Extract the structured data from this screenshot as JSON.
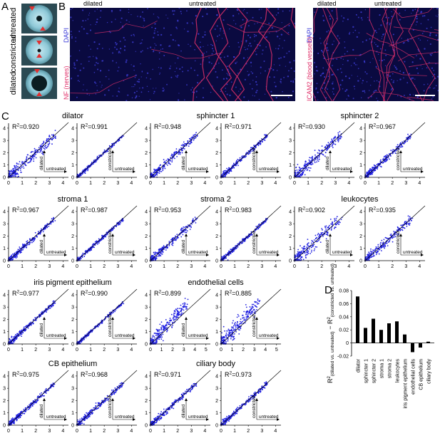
{
  "panel_labels": {
    "a": "A",
    "b": "B",
    "c": "C",
    "d": "D"
  },
  "panel_a": {
    "rows": [
      "untreated",
      "constricted",
      "dilated"
    ],
    "colors": {
      "eye_bg": "#2f4f58",
      "iris": "#8fc9d8",
      "pupil": "#0b1d22",
      "arrow": "#e03030"
    }
  },
  "panel_b": {
    "left": {
      "labels": [
        "dilated",
        "untreated"
      ],
      "stain_red": "NF (nerves)",
      "stain_blue": "DAPI"
    },
    "right": {
      "labels": [
        "dilated",
        "untreated"
      ],
      "stain_red": "ICAM2 (blood vessels)",
      "stain_blue": "DAPI"
    },
    "colors": {
      "tissue": "#1a1a8c",
      "nuclei": "#3d3dd6",
      "fiber": "#e0306a"
    }
  },
  "panel_c": {
    "x_label": "untreated",
    "y_dilated": "dilated",
    "y_constricted": "constricted",
    "r2_prefix": "R",
    "r2_sup": "2",
    "r2_eq": "=",
    "point_color": "#1f1fe0",
    "rows": [
      {
        "groups": [
          {
            "title": "dilator",
            "r2": [
              "0.920",
              "0.991"
            ]
          },
          {
            "title": "sphincter 1",
            "r2": [
              "0.948",
              "0.971"
            ]
          },
          {
            "title": "sphincter 2",
            "r2": [
              "0.930",
              "0.967"
            ]
          }
        ]
      },
      {
        "groups": [
          {
            "title": "stroma 1",
            "r2": [
              "0.967",
              "0.987"
            ]
          },
          {
            "title": "stroma 2",
            "r2": [
              "0.953",
              "0.983"
            ]
          },
          {
            "title": "leukocytes",
            "r2": [
              "0.902",
              "0.935"
            ]
          }
        ]
      },
      {
        "groups": [
          {
            "title": "iris pigment epithelium",
            "r2": [
              "0.977",
              "0.990"
            ]
          },
          {
            "title": "endothelial cells",
            "r2": [
              "0.899",
              "0.885"
            ]
          }
        ]
      },
      {
        "groups": [
          {
            "title": "CB epithelium",
            "r2": [
              "0.975",
              "0.968"
            ]
          },
          {
            "title": "ciliary body",
            "r2": [
              "0.971",
              "0.973"
            ]
          }
        ]
      }
    ],
    "tick_labels": {
      "y": [
        "0",
        "1",
        "2",
        "3",
        "4"
      ],
      "x": [
        "0",
        "1",
        "2",
        "3",
        "4"
      ],
      "x5": [
        "0",
        "1",
        "2",
        "3",
        "4",
        "5"
      ]
    }
  },
  "chart_data": {
    "type": "bar",
    "categories": [
      "dilator",
      "sphincter 1",
      "sphincter 2",
      "stroma 1",
      "stroma 2",
      "leukocytes",
      "iris pigment epithelium",
      "endothelial cells",
      "CB epithelium",
      "ciliary body"
    ],
    "values": [
      0.071,
      0.023,
      0.037,
      0.02,
      0.03,
      0.033,
      0.013,
      -0.014,
      -0.007,
      0.002
    ],
    "ylabel_main": "R",
    "ylabel_sup_a": "2",
    "ylabel_sub_a": "(dilated vs. untreated)",
    "ylabel_minus": " − R",
    "ylabel_sup_b": "2",
    "ylabel_sub_b": "(constricted vs. untreated)",
    "y_ticks": [
      "0.08",
      "0.06",
      "0.04",
      "0.02",
      "0",
      "-0.02"
    ],
    "ylim": [
      -0.02,
      0.08
    ],
    "bar_color": "#000000"
  }
}
